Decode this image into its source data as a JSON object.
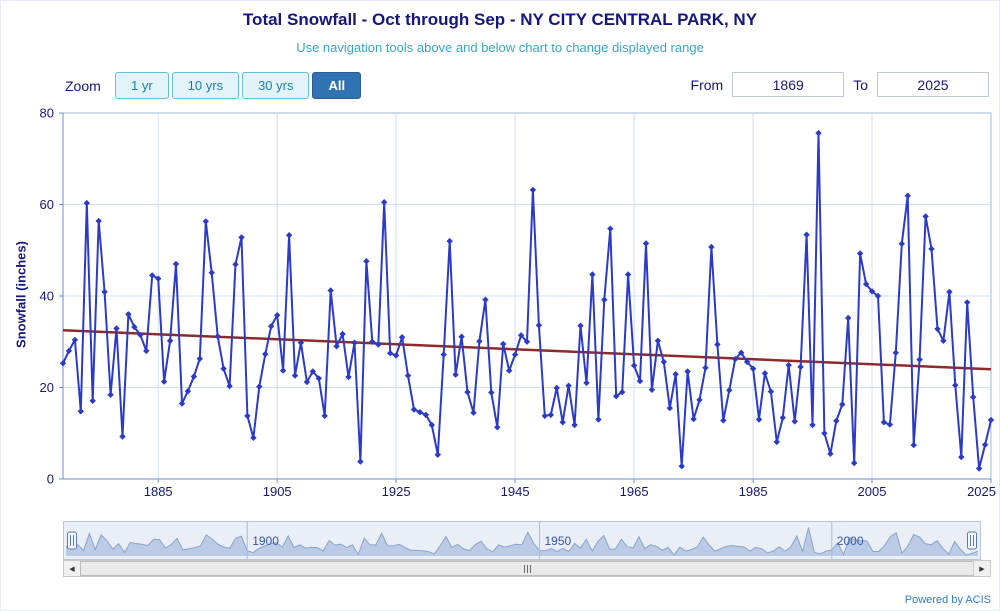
{
  "controls": {
    "zoom_label": "Zoom",
    "zoom_buttons": [
      {
        "label": "1 yr",
        "selected": false
      },
      {
        "label": "10 yrs",
        "selected": false
      },
      {
        "label": "30 yrs",
        "selected": false
      },
      {
        "label": "All",
        "selected": true
      }
    ],
    "from_label": "From",
    "from_value": "1869",
    "to_label": "To",
    "to_value": "2025"
  },
  "scrollbar": {
    "left_arrow": "◀",
    "right_arrow": "▶"
  },
  "footer": {
    "powered_by": "Powered by ACIS"
  },
  "chart_data": {
    "type": "line",
    "title": "Total Snowfall - Oct through Sep - NY CITY CENTRAL PARK, NY",
    "subtitle": "Use navigation tools above and below chart to change displayed range",
    "ylabel": "Snowfall (inches)",
    "ylim": [
      0,
      80
    ],
    "yticks": [
      0,
      20,
      40,
      60,
      80
    ],
    "xticks": [
      1885,
      1905,
      1925,
      1945,
      1965,
      1985,
      2005,
      2025
    ],
    "x_range": [
      1869,
      2025
    ],
    "grid": true,
    "legend": "none",
    "navigator_labels": [
      1900,
      1950,
      2000
    ],
    "colors": {
      "series_line": "#2c3bc7",
      "marker": "#2c3bc7",
      "trend": "#8f2a2a",
      "grid": "#cfdff3",
      "axis_border": "#9cb8de",
      "axis_line": "#6d8fc8",
      "axis_text": "#16167e",
      "navigator_fill": "#c9d7ec",
      "navigator_line": "#8da9cd",
      "navigator_mask": "rgba(108,138,196,0.14)",
      "navigator_label": "#2d4fae"
    },
    "trend_line": {
      "x": [
        1869,
        2025
      ],
      "y": [
        32.5,
        24.0
      ]
    },
    "series": [
      {
        "name": "Total Snowfall",
        "points": [
          [
            1869,
            25.3
          ],
          [
            1870,
            28.0
          ],
          [
            1871,
            30.4
          ],
          [
            1872,
            14.8
          ],
          [
            1873,
            60.3
          ],
          [
            1874,
            17.1
          ],
          [
            1875,
            56.4
          ],
          [
            1876,
            40.9
          ],
          [
            1877,
            18.4
          ],
          [
            1878,
            32.9
          ],
          [
            1879,
            9.3
          ],
          [
            1880,
            36.0
          ],
          [
            1881,
            33.2
          ],
          [
            1882,
            31.5
          ],
          [
            1883,
            28.0
          ],
          [
            1884,
            44.5
          ],
          [
            1885,
            43.8
          ],
          [
            1886,
            21.3
          ],
          [
            1887,
            30.2
          ],
          [
            1888,
            47.0
          ],
          [
            1889,
            16.5
          ],
          [
            1890,
            19.2
          ],
          [
            1891,
            22.4
          ],
          [
            1892,
            26.3
          ],
          [
            1893,
            56.3
          ],
          [
            1894,
            45.1
          ],
          [
            1895,
            31.2
          ],
          [
            1896,
            24.1
          ],
          [
            1897,
            20.3
          ],
          [
            1898,
            46.9
          ],
          [
            1899,
            52.8
          ],
          [
            1900,
            13.8
          ],
          [
            1901,
            9.0
          ],
          [
            1902,
            20.2
          ],
          [
            1903,
            27.3
          ],
          [
            1904,
            33.4
          ],
          [
            1905,
            35.8
          ],
          [
            1906,
            23.7
          ],
          [
            1907,
            53.3
          ],
          [
            1908,
            22.6
          ],
          [
            1909,
            29.8
          ],
          [
            1910,
            21.2
          ],
          [
            1911,
            23.5
          ],
          [
            1912,
            22.0
          ],
          [
            1913,
            13.8
          ],
          [
            1914,
            41.2
          ],
          [
            1915,
            29.0
          ],
          [
            1916,
            31.7
          ],
          [
            1917,
            22.3
          ],
          [
            1918,
            29.8
          ],
          [
            1919,
            3.8
          ],
          [
            1920,
            47.6
          ],
          [
            1921,
            30.0
          ],
          [
            1922,
            29.4
          ],
          [
            1923,
            60.5
          ],
          [
            1924,
            27.5
          ],
          [
            1925,
            27.0
          ],
          [
            1926,
            31.0
          ],
          [
            1927,
            22.6
          ],
          [
            1928,
            15.2
          ],
          [
            1929,
            14.6
          ],
          [
            1930,
            14.0
          ],
          [
            1931,
            11.8
          ],
          [
            1932,
            5.3
          ],
          [
            1933,
            27.2
          ],
          [
            1934,
            52.0
          ],
          [
            1935,
            22.8
          ],
          [
            1936,
            31.1
          ],
          [
            1937,
            19.0
          ],
          [
            1938,
            14.5
          ],
          [
            1939,
            30.1
          ],
          [
            1940,
            39.2
          ],
          [
            1941,
            18.9
          ],
          [
            1942,
            11.3
          ],
          [
            1943,
            29.5
          ],
          [
            1944,
            23.7
          ],
          [
            1945,
            27.2
          ],
          [
            1946,
            31.4
          ],
          [
            1947,
            30.0
          ],
          [
            1948,
            63.2
          ],
          [
            1949,
            33.6
          ],
          [
            1950,
            13.8
          ],
          [
            1951,
            14.0
          ],
          [
            1952,
            19.9
          ],
          [
            1953,
            12.4
          ],
          [
            1954,
            20.4
          ],
          [
            1955,
            11.8
          ],
          [
            1956,
            33.5
          ],
          [
            1957,
            21.0
          ],
          [
            1958,
            44.7
          ],
          [
            1959,
            13.0
          ],
          [
            1960,
            39.2
          ],
          [
            1961,
            54.7
          ],
          [
            1962,
            18.1
          ],
          [
            1963,
            19.0
          ],
          [
            1964,
            44.7
          ],
          [
            1965,
            24.8
          ],
          [
            1966,
            21.4
          ],
          [
            1967,
            51.5
          ],
          [
            1968,
            19.5
          ],
          [
            1969,
            30.2
          ],
          [
            1970,
            25.6
          ],
          [
            1971,
            15.5
          ],
          [
            1972,
            22.9
          ],
          [
            1973,
            2.8
          ],
          [
            1974,
            23.5
          ],
          [
            1975,
            13.1
          ],
          [
            1976,
            17.3
          ],
          [
            1977,
            24.3
          ],
          [
            1978,
            50.7
          ],
          [
            1979,
            29.4
          ],
          [
            1980,
            12.8
          ],
          [
            1981,
            19.4
          ],
          [
            1982,
            26.2
          ],
          [
            1983,
            27.6
          ],
          [
            1984,
            25.6
          ],
          [
            1985,
            24.1
          ],
          [
            1986,
            13.0
          ],
          [
            1987,
            23.1
          ],
          [
            1988,
            19.1
          ],
          [
            1989,
            8.1
          ],
          [
            1990,
            13.4
          ],
          [
            1991,
            24.9
          ],
          [
            1992,
            12.6
          ],
          [
            1993,
            24.5
          ],
          [
            1994,
            53.4
          ],
          [
            1995,
            11.8
          ],
          [
            1996,
            75.6
          ],
          [
            1997,
            10.0
          ],
          [
            1998,
            5.5
          ],
          [
            1999,
            12.7
          ],
          [
            2000,
            16.3
          ],
          [
            2001,
            35.2
          ],
          [
            2002,
            3.5
          ],
          [
            2003,
            49.3
          ],
          [
            2004,
            42.6
          ],
          [
            2005,
            41.0
          ],
          [
            2006,
            40.0
          ],
          [
            2007,
            12.4
          ],
          [
            2008,
            11.9
          ],
          [
            2009,
            27.6
          ],
          [
            2010,
            51.4
          ],
          [
            2011,
            61.9
          ],
          [
            2012,
            7.4
          ],
          [
            2013,
            26.1
          ],
          [
            2014,
            57.4
          ],
          [
            2015,
            50.3
          ],
          [
            2016,
            32.8
          ],
          [
            2017,
            30.2
          ],
          [
            2018,
            40.9
          ],
          [
            2019,
            20.5
          ],
          [
            2020,
            4.8
          ],
          [
            2021,
            38.6
          ],
          [
            2022,
            17.9
          ],
          [
            2023,
            2.3
          ],
          [
            2024,
            7.5
          ],
          [
            2025,
            12.9
          ]
        ]
      }
    ]
  }
}
